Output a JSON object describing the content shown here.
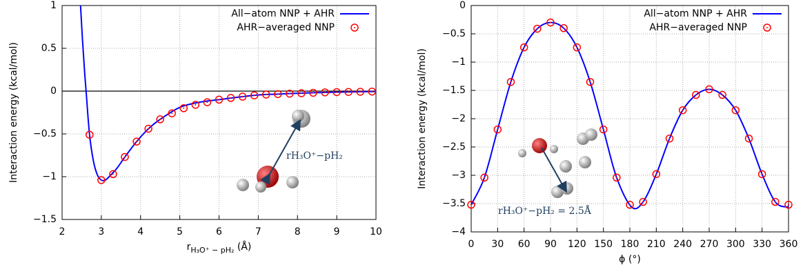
{
  "chart_data": [
    {
      "type": "line",
      "xlabel": {
        "base": "r",
        "subscript": "H₃O⁺ − pH₂",
        "unit": "(Å)"
      },
      "ylabel": "Interaction energy (kcal/mol)",
      "annotation": "rH₃O⁺−pH₂",
      "xlim": [
        2,
        10
      ],
      "xticks": [
        2,
        3,
        4,
        5,
        6,
        7,
        8,
        9,
        10
      ],
      "ylim": [
        -1.5,
        1
      ],
      "yticks": [
        -1.5,
        -1,
        -0.5,
        0,
        0.5,
        1
      ],
      "grid": true,
      "zero_line": true,
      "legend": "top-right",
      "series": [
        {
          "name": "All−atom NNP + AHR",
          "color": "#0000ff",
          "mark": "line",
          "x": [
            2.47,
            2.52,
            2.57,
            2.62,
            2.7,
            2.8,
            2.9,
            3.0,
            3.1,
            3.2,
            3.4,
            3.6,
            3.9,
            4.2,
            4.5,
            5,
            5.5,
            6,
            6.5,
            7,
            7.5,
            8,
            8.5,
            9,
            9.5,
            10
          ],
          "values": [
            1,
            0.6,
            0.25,
            -0.05,
            -0.51,
            -0.82,
            -0.98,
            -1.04,
            -1.04,
            -1.0,
            -0.9,
            -0.77,
            -0.59,
            -0.44,
            -0.33,
            -0.19,
            -0.13,
            -0.1,
            -0.07,
            -0.045,
            -0.035,
            -0.025,
            -0.018,
            -0.012,
            -0.008,
            -0.005
          ]
        },
        {
          "name": "AHR−averaged NNP",
          "color": "#ff0000",
          "mark": "circle",
          "x": [
            2.7,
            3.0,
            3.3,
            3.6,
            3.9,
            4.2,
            4.5,
            4.8,
            5.1,
            5.4,
            5.7,
            6.0,
            6.3,
            6.6,
            6.9,
            7.2,
            7.5,
            7.8,
            8.1,
            8.4,
            8.7,
            9.0,
            9.3,
            9.6,
            9.9
          ],
          "values": [
            -0.51,
            -1.04,
            -0.97,
            -0.77,
            -0.59,
            -0.44,
            -0.33,
            -0.26,
            -0.2,
            -0.16,
            -0.13,
            -0.1,
            -0.08,
            -0.065,
            -0.05,
            -0.04,
            -0.035,
            -0.03,
            -0.025,
            -0.02,
            -0.015,
            -0.012,
            -0.01,
            -0.008,
            -0.006
          ]
        }
      ]
    },
    {
      "type": "line",
      "xlabel": {
        "base": "ϕ",
        "subscript": "",
        "unit": "(°)"
      },
      "ylabel": "Interaction energy (kcal/mol)",
      "annotation": "rH₃O⁺−pH₂ = 2.5Å",
      "xlim": [
        0,
        360
      ],
      "xticks": [
        0,
        30,
        60,
        90,
        120,
        150,
        180,
        210,
        240,
        270,
        300,
        330,
        360
      ],
      "ylim": [
        -4,
        0
      ],
      "yticks": [
        -4,
        -3.5,
        -3,
        -2.5,
        -2,
        -1.5,
        -1,
        -0.5,
        0
      ],
      "grid": true,
      "zero_line": false,
      "legend": "top-right",
      "series": [
        {
          "name": "All−atom NNP + AHR",
          "color": "#0000ff",
          "mark": "line",
          "x": [
            0,
            15,
            30,
            45,
            60,
            75,
            90,
            105,
            120,
            135,
            150,
            165,
            182,
            195,
            210,
            225,
            240,
            255,
            270,
            285,
            300,
            315,
            330,
            345,
            358,
            360
          ],
          "values": [
            -3.52,
            -3.04,
            -2.19,
            -1.35,
            -0.74,
            -0.41,
            -0.3,
            -0.4,
            -0.74,
            -1.35,
            -2.19,
            -3.04,
            -3.56,
            -3.47,
            -2.98,
            -2.35,
            -1.85,
            -1.58,
            -1.48,
            -1.58,
            -1.85,
            -2.35,
            -2.98,
            -3.47,
            -3.56,
            -3.53
          ]
        },
        {
          "name": "AHR−averaged NNP",
          "color": "#ff0000",
          "mark": "circle",
          "x": [
            0,
            15,
            30,
            45,
            60,
            75,
            90,
            105,
            120,
            135,
            150,
            165,
            180,
            195,
            210,
            225,
            240,
            255,
            270,
            285,
            300,
            315,
            330,
            345,
            360
          ],
          "values": [
            -3.52,
            -3.04,
            -2.19,
            -1.35,
            -0.74,
            -0.41,
            -0.3,
            -0.4,
            -0.74,
            -1.35,
            -2.19,
            -3.04,
            -3.52,
            -3.47,
            -2.98,
            -2.35,
            -1.85,
            -1.58,
            -1.48,
            -1.58,
            -1.85,
            -2.35,
            -2.98,
            -3.47,
            -3.52
          ]
        }
      ]
    }
  ]
}
